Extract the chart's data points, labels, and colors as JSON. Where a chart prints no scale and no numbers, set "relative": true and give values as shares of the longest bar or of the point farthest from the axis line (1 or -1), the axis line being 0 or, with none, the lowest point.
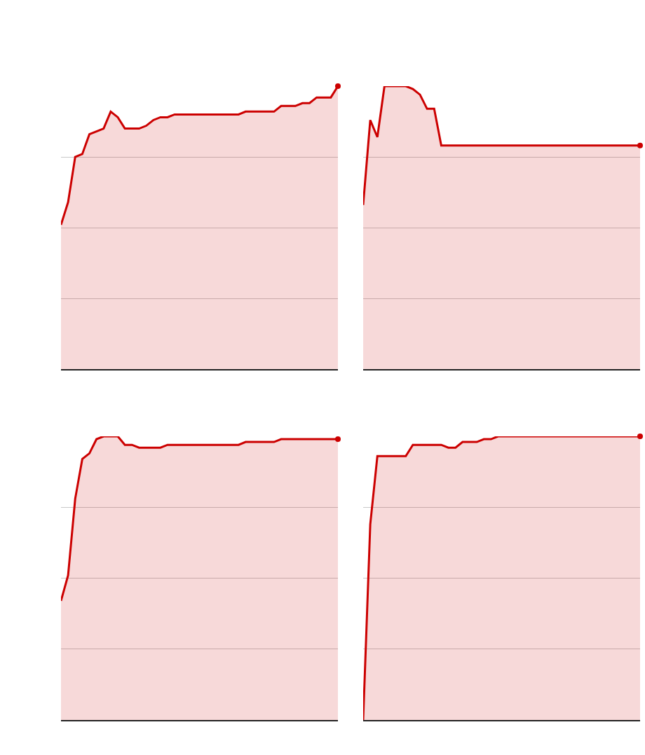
{
  "chart_data": [
    {
      "type": "area",
      "relative": true,
      "grid": "y",
      "categories": [
        null,
        null,
        null,
        null,
        null,
        null,
        null,
        null,
        null,
        null,
        null,
        null,
        null,
        null,
        null,
        null,
        null,
        null,
        null,
        null,
        null,
        null,
        null,
        null,
        null,
        null,
        null,
        null,
        null,
        null,
        null,
        null,
        null,
        null,
        null,
        null,
        null,
        null,
        null,
        null
      ],
      "series": [
        {
          "color": "#cc0000",
          "values": [
            0.51,
            0.59,
            0.75,
            0.76,
            0.83,
            0.84,
            0.85,
            0.91,
            0.89,
            0.85,
            0.85,
            0.85,
            0.86,
            0.88,
            0.89,
            0.89,
            0.9,
            0.9,
            0.9,
            0.9,
            0.9,
            0.9,
            0.9,
            0.9,
            0.9,
            0.9,
            0.91,
            0.91,
            0.91,
            0.91,
            0.91,
            0.93,
            0.93,
            0.93,
            0.94,
            0.94,
            0.96,
            0.96,
            0.96,
            1
          ]
        }
      ]
    },
    {
      "type": "area",
      "relative": true,
      "grid": "y",
      "categories": [
        null,
        null,
        null,
        null,
        null,
        null,
        null,
        null,
        null,
        null,
        null,
        null,
        null,
        null,
        null,
        null,
        null,
        null,
        null,
        null,
        null,
        null,
        null,
        null,
        null,
        null,
        null,
        null,
        null,
        null,
        null,
        null,
        null,
        null,
        null,
        null,
        null,
        null,
        null,
        null
      ],
      "series": [
        {
          "color": "#cc0000",
          "values": [
            0.58,
            0.88,
            0.82,
            1,
            1,
            1,
            1,
            0.99,
            0.97,
            0.92,
            0.92,
            0.79,
            0.79,
            0.79,
            0.79,
            0.79,
            0.79,
            0.79,
            0.79,
            0.79,
            0.79,
            0.79,
            0.79,
            0.79,
            0.79,
            0.79,
            0.79,
            0.79,
            0.79,
            0.79,
            0.79,
            0.79,
            0.79,
            0.79,
            0.79,
            0.79,
            0.79,
            0.79,
            0.79,
            0.79
          ]
        }
      ]
    },
    {
      "type": "area",
      "relative": true,
      "grid": "y",
      "categories": [
        null,
        null,
        null,
        null,
        null,
        null,
        null,
        null,
        null,
        null,
        null,
        null,
        null,
        null,
        null,
        null,
        null,
        null,
        null,
        null,
        null,
        null,
        null,
        null,
        null,
        null,
        null,
        null,
        null,
        null,
        null,
        null,
        null,
        null,
        null,
        null,
        null,
        null,
        null,
        null
      ],
      "series": [
        {
          "color": "#cc0000",
          "values": [
            0.42,
            0.51,
            0.78,
            0.92,
            0.94,
            0.99,
            1,
            1,
            1,
            0.97,
            0.97,
            0.96,
            0.96,
            0.96,
            0.96,
            0.97,
            0.97,
            0.97,
            0.97,
            0.97,
            0.97,
            0.97,
            0.97,
            0.97,
            0.97,
            0.97,
            0.98,
            0.98,
            0.98,
            0.98,
            0.98,
            0.99,
            0.99,
            0.99,
            0.99,
            0.99,
            0.99,
            0.99,
            0.99,
            0.99
          ]
        }
      ]
    },
    {
      "type": "area",
      "relative": true,
      "grid": "y",
      "categories": [
        null,
        null,
        null,
        null,
        null,
        null,
        null,
        null,
        null,
        null,
        null,
        null,
        null,
        null,
        null,
        null,
        null,
        null,
        null,
        null,
        null,
        null,
        null,
        null,
        null,
        null,
        null,
        null,
        null,
        null,
        null,
        null,
        null,
        null,
        null,
        null,
        null,
        null,
        null,
        null
      ],
      "series": [
        {
          "color": "#cc0000",
          "values": [
            0,
            0.69,
            0.93,
            0.93,
            0.93,
            0.93,
            0.93,
            0.97,
            0.97,
            0.97,
            0.97,
            0.97,
            0.96,
            0.96,
            0.98,
            0.98,
            0.98,
            0.99,
            0.99,
            1,
            1,
            1,
            1,
            1,
            1,
            1,
            1,
            1,
            1,
            1,
            1,
            1,
            1,
            1,
            1,
            1,
            1,
            1,
            1,
            1
          ]
        }
      ]
    }
  ]
}
